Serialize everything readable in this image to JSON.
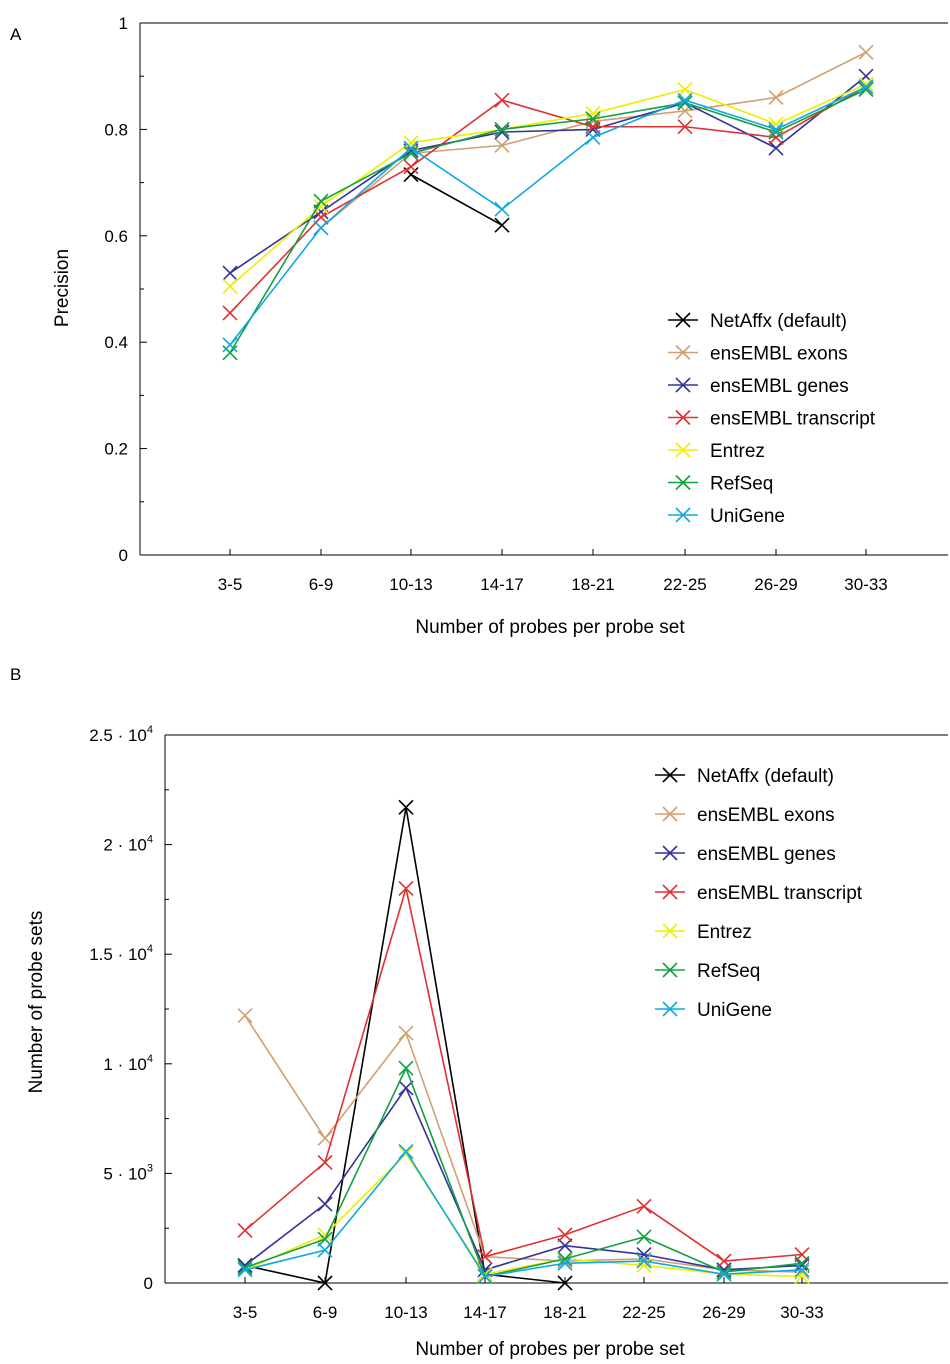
{
  "chart_data": [
    {
      "panel": "A",
      "type": "line",
      "categories": [
        "3-5",
        "6-9",
        "10-13",
        "14-17",
        "18-21",
        "22-25",
        "26-29",
        "30-33"
      ],
      "xlabel": "Number of probes per probe set",
      "ylabel": "Precision",
      "ylim": [
        0,
        1
      ],
      "yticks": [
        {
          "value": 0,
          "label": "0"
        },
        {
          "value": 0.2,
          "label": "0.2"
        },
        {
          "value": 0.4,
          "label": "0.4"
        },
        {
          "value": 0.6,
          "label": "0.6"
        },
        {
          "value": 0.8,
          "label": "0.8"
        },
        {
          "value": 1,
          "label": "1"
        }
      ],
      "legend_position": "bottom-right",
      "grid": false,
      "marker": "x",
      "series": [
        {
          "name": "NetAffx  (default)",
          "color": "#000000",
          "values": [
            null,
            null,
            0.715,
            0.62,
            null,
            null,
            null,
            null
          ]
        },
        {
          "name": "ensEMBL exons",
          "color": "#d2a070",
          "values": [
            null,
            0.615,
            0.755,
            0.77,
            0.815,
            0.835,
            0.86,
            0.945
          ]
        },
        {
          "name": "ensEMBL genes",
          "color": "#333399",
          "values": [
            0.53,
            0.645,
            0.76,
            0.795,
            0.8,
            0.85,
            0.765,
            0.9
          ]
        },
        {
          "name": "ensEMBL transcript",
          "color": "#e03030",
          "values": [
            0.455,
            0.635,
            0.73,
            0.855,
            0.805,
            0.805,
            0.785,
            0.88
          ]
        },
        {
          "name": "Entrez",
          "color": "#eeee00",
          "values": [
            0.505,
            0.655,
            0.775,
            0.8,
            0.83,
            0.875,
            0.81,
            0.885
          ]
        },
        {
          "name": "RefSeq",
          "color": "#11a040",
          "values": [
            0.38,
            0.665,
            0.755,
            0.8,
            0.82,
            0.85,
            0.795,
            0.875
          ]
        },
        {
          "name": "UniGene",
          "color": "#10a8e0",
          "values": [
            0.395,
            0.615,
            0.765,
            0.65,
            0.785,
            0.855,
            0.8,
            0.88
          ]
        }
      ]
    },
    {
      "panel": "B",
      "type": "line",
      "categories": [
        "3-5",
        "6-9",
        "10-13",
        "14-17",
        "18-21",
        "22-25",
        "26-29",
        "30-33"
      ],
      "xlabel": "Number of probes per probe set",
      "ylabel": "Number of probe sets",
      "ylim": [
        0,
        25000
      ],
      "yticks": [
        {
          "value": 0,
          "label": "0"
        },
        {
          "value": 5000,
          "label": "5 · 10",
          "exp": "3"
        },
        {
          "value": 10000,
          "label": "1 · 10",
          "exp": "4"
        },
        {
          "value": 15000,
          "label": "1.5 · 10",
          "exp": "4"
        },
        {
          "value": 20000,
          "label": "2 · 10",
          "exp": "4"
        },
        {
          "value": 25000,
          "label": "2.5 · 10",
          "exp": "4"
        }
      ],
      "legend_position": "top-right",
      "grid": false,
      "marker": "x",
      "series": [
        {
          "name": "NetAffx  (default)",
          "color": "#000000",
          "values": [
            800,
            0,
            21700,
            400,
            0,
            null,
            null,
            null
          ]
        },
        {
          "name": "ensEMBL exons",
          "color": "#d2a070",
          "values": [
            12200,
            6600,
            11400,
            1200,
            1000,
            1100,
            600,
            500
          ]
        },
        {
          "name": "ensEMBL genes",
          "color": "#333399",
          "values": [
            800,
            3600,
            8900,
            600,
            1700,
            1300,
            600,
            800
          ]
        },
        {
          "name": "ensEMBL transcript",
          "color": "#e03030",
          "values": [
            2400,
            5500,
            18000,
            1200,
            2200,
            3500,
            1000,
            1300
          ]
        },
        {
          "name": "Entrez",
          "color": "#eeee00",
          "values": [
            600,
            2200,
            5900,
            400,
            1100,
            800,
            400,
            300
          ]
        },
        {
          "name": "RefSeq",
          "color": "#11a040",
          "values": [
            700,
            2000,
            9800,
            300,
            1100,
            2100,
            500,
            900
          ]
        },
        {
          "name": "UniGene",
          "color": "#10a8e0",
          "values": [
            600,
            1500,
            6000,
            300,
            900,
            1000,
            400,
            600
          ]
        }
      ]
    }
  ]
}
